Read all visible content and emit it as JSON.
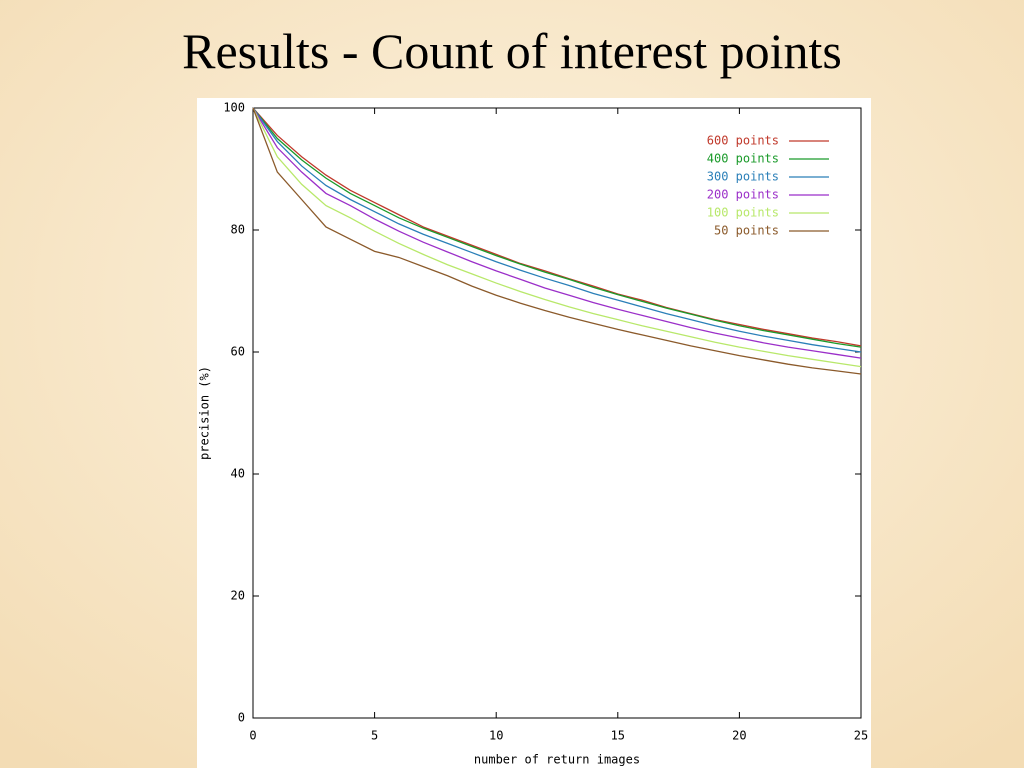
{
  "slide_title": "Results - Count of interest points",
  "chart_data": {
    "type": "line",
    "xlabel": "number of return images",
    "ylabel": "precision (%)",
    "x": [
      0,
      1,
      2,
      3,
      4,
      5,
      6,
      7,
      8,
      9,
      10,
      11,
      12,
      13,
      14,
      15,
      16,
      17,
      18,
      19,
      20,
      21,
      22,
      23,
      24,
      25
    ],
    "series": [
      {
        "name": "600 points",
        "color": "#c0392b",
        "values": [
          100,
          95.5,
          92,
          89,
          86.5,
          84.5,
          82.5,
          80.5,
          79,
          77.5,
          76,
          74.5,
          73.3,
          72,
          70.8,
          69.5,
          68.5,
          67.3,
          66.3,
          65.3,
          64.5,
          63.7,
          63,
          62.3,
          61.7,
          61
        ]
      },
      {
        "name": "400 points",
        "color": "#1a9a2a",
        "values": [
          100,
          95,
          91.5,
          88.5,
          86,
          84,
          82,
          80.3,
          78.8,
          77.3,
          75.8,
          74.4,
          73.1,
          71.9,
          70.6,
          69.4,
          68.3,
          67.2,
          66.2,
          65.2,
          64.3,
          63.5,
          62.8,
          62.1,
          61.4,
          60.8
        ]
      },
      {
        "name": "300 points",
        "color": "#2a7fb8",
        "values": [
          100,
          94.5,
          90.5,
          87.3,
          85,
          83,
          81,
          79.3,
          77.8,
          76.3,
          74.8,
          73.4,
          72.1,
          70.9,
          69.6,
          68.5,
          67.4,
          66.3,
          65.3,
          64.3,
          63.4,
          62.6,
          61.9,
          61.2,
          60.6,
          60
        ]
      },
      {
        "name": "200 points",
        "color": "#9b2fc9",
        "values": [
          100,
          93.5,
          89.5,
          86,
          84,
          81.8,
          79.8,
          78,
          76.4,
          74.8,
          73.3,
          71.9,
          70.5,
          69.3,
          68.1,
          67,
          66,
          65,
          64,
          63.1,
          62.3,
          61.5,
          60.8,
          60.2,
          59.6,
          59
        ]
      },
      {
        "name": "100 points",
        "color": "#b8e86a",
        "values": [
          100,
          92,
          87.5,
          84,
          82,
          79.8,
          77.8,
          76,
          74.3,
          72.8,
          71.3,
          69.9,
          68.6,
          67.4,
          66.3,
          65.3,
          64.3,
          63.4,
          62.5,
          61.6,
          60.8,
          60.1,
          59.4,
          58.8,
          58.2,
          57.6
        ]
      },
      {
        "name": "50 points",
        "color": "#8b5a2b",
        "values": [
          100,
          89.5,
          85,
          80.5,
          78.5,
          76.5,
          75.5,
          74,
          72.5,
          70.8,
          69.3,
          68,
          66.8,
          65.7,
          64.7,
          63.7,
          62.8,
          61.9,
          61,
          60.2,
          59.4,
          58.7,
          58,
          57.4,
          56.9,
          56.4
        ]
      }
    ],
    "xlim": [
      0,
      25
    ],
    "xticks": [
      0,
      5,
      10,
      15,
      20,
      25
    ],
    "ylim": [
      0,
      100
    ],
    "yticks": [
      0,
      20,
      40,
      60,
      80,
      100
    ],
    "legend": "top-right"
  }
}
